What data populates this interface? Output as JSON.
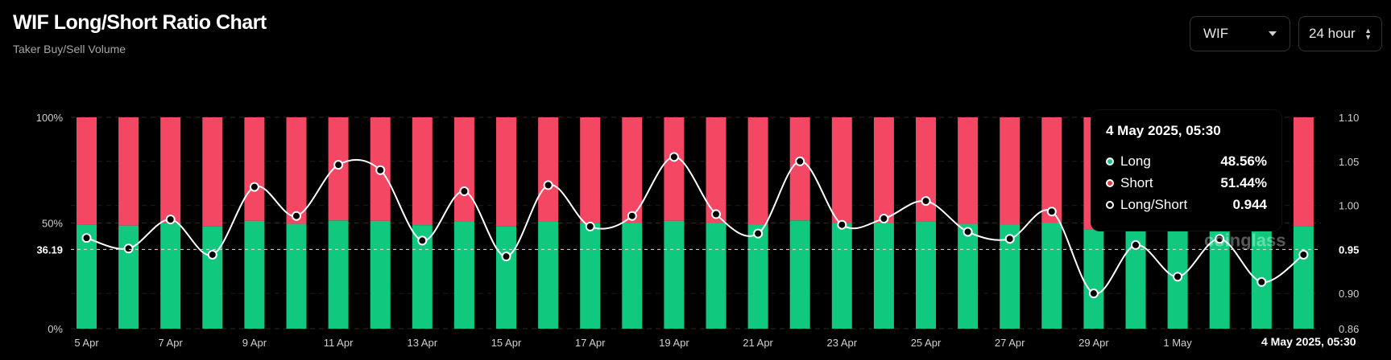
{
  "header": {
    "title": "WIF Long/Short Ratio Chart",
    "subtitle": "Taker Buy/Sell Volume"
  },
  "controls": {
    "symbol": "WIF",
    "period": "24 hour"
  },
  "watermark": "coinglass",
  "crosshair": {
    "left_label": "36.19",
    "right_label": "0.95",
    "x_label": "4 May 2025, 05:30"
  },
  "tooltip": {
    "title": "4 May 2025, 05:30",
    "rows": [
      {
        "label": "Long",
        "value": "48.56%",
        "color": "#16c784"
      },
      {
        "label": "Short",
        "value": "51.44%",
        "color": "#ea3943"
      },
      {
        "label": "Long/Short",
        "value": "0.944",
        "color": "#ffffff"
      }
    ]
  },
  "colors": {
    "long": "#10c97f",
    "short": "#f44764",
    "line": "#ffffff",
    "grid": "#2a2a2a",
    "axis_text": "#cfcfcf"
  },
  "chart_data": {
    "type": "bar",
    "categories": [
      "5 Apr",
      "6 Apr",
      "7 Apr",
      "8 Apr",
      "9 Apr",
      "10 Apr",
      "11 Apr",
      "12 Apr",
      "13 Apr",
      "14 Apr",
      "15 Apr",
      "16 Apr",
      "17 Apr",
      "18 Apr",
      "19 Apr",
      "20 Apr",
      "21 Apr",
      "22 Apr",
      "23 Apr",
      "24 Apr",
      "25 Apr",
      "26 Apr",
      "27 Apr",
      "28 Apr",
      "29 Apr",
      "30 Apr",
      "1 May",
      "2 May",
      "3 May",
      "4 May"
    ],
    "x_tick_labels": [
      "5 Apr",
      "7 Apr",
      "9 Apr",
      "11 Apr",
      "13 Apr",
      "15 Apr",
      "17 Apr",
      "19 Apr",
      "21 Apr",
      "23 Apr",
      "25 Apr",
      "27 Apr",
      "29 Apr",
      "1 May"
    ],
    "series": [
      {
        "name": "Long",
        "axis": "left",
        "values": [
          49.2,
          48.8,
          49.8,
          48.4,
          51.0,
          49.6,
          51.2,
          51.0,
          49.0,
          50.8,
          48.4,
          50.8,
          49.8,
          50.0,
          51.0,
          50.0,
          49.4,
          51.2,
          49.8,
          50.0,
          50.6,
          49.6,
          49.4,
          50.2,
          47.0,
          48.0,
          47.6,
          48.4,
          47.6,
          48.56
        ]
      },
      {
        "name": "Short",
        "axis": "left",
        "values": [
          50.8,
          51.2,
          50.2,
          51.6,
          49.0,
          50.4,
          48.8,
          49.0,
          51.0,
          49.2,
          51.6,
          49.2,
          50.2,
          50.0,
          49.0,
          50.0,
          50.6,
          48.8,
          50.2,
          50.0,
          49.4,
          50.4,
          50.6,
          49.8,
          53.0,
          52.0,
          52.4,
          51.6,
          52.4,
          51.44
        ]
      },
      {
        "name": "Long/Short",
        "axis": "right",
        "type": "line",
        "values": [
          0.963,
          0.951,
          0.984,
          0.944,
          1.021,
          0.988,
          1.046,
          1.04,
          0.96,
          1.016,
          0.942,
          1.023,
          0.976,
          0.988,
          1.055,
          0.99,
          0.968,
          1.05,
          0.978,
          0.985,
          1.005,
          0.97,
          0.962,
          0.993,
          0.9,
          0.955,
          0.919,
          0.962,
          0.913,
          0.944
        ]
      }
    ],
    "left_axis": {
      "ylim": [
        0,
        100
      ],
      "ticks": [
        "0%",
        "50%",
        "100%"
      ]
    },
    "right_axis": {
      "ylim": [
        0.86,
        1.1
      ],
      "ticks": [
        "0.86",
        "0.90",
        "0.95",
        "1.00",
        "1.05",
        "1.10"
      ]
    },
    "grid": true
  }
}
